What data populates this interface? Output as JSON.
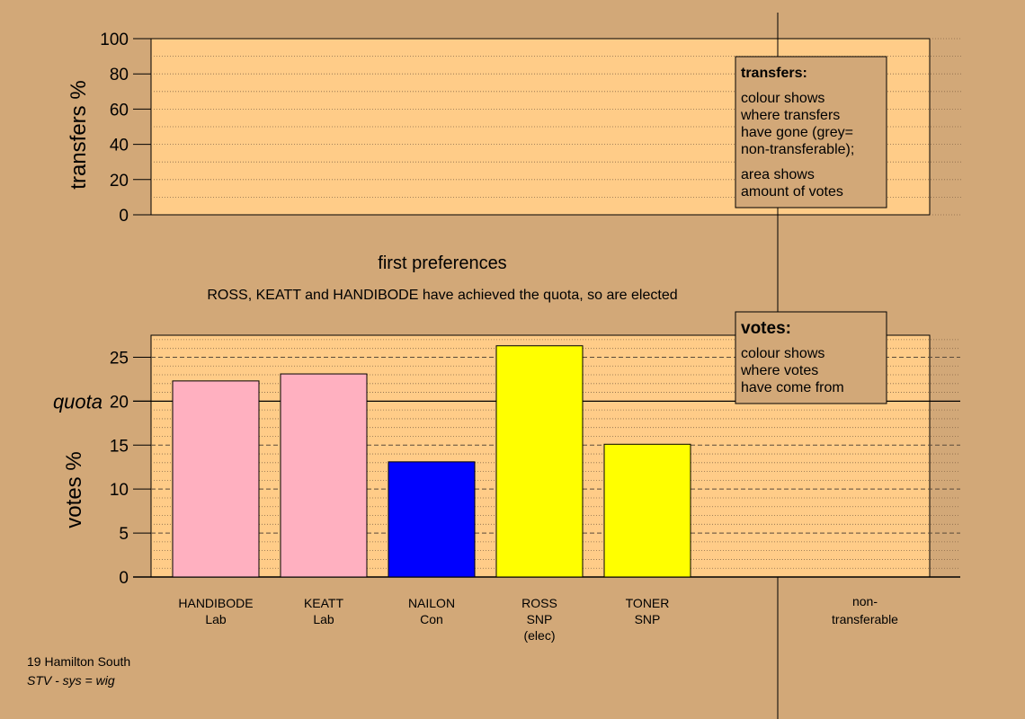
{
  "colors": {
    "background": "#d2a878",
    "panel": "#ffcc88",
    "legend_box": "#d2a878",
    "grid_minor": "#8a6a4a",
    "grid_major": "#5a4a3a",
    "axis": "#000000"
  },
  "top_panel": {
    "ylabel": "transfers %",
    "yticks": [
      "0",
      "20",
      "40",
      "60",
      "80",
      "100"
    ],
    "legend": {
      "title": "transfers:",
      "line1": "colour shows",
      "line2": "where transfers",
      "line3": "have gone (grey=",
      "line4": "non-transferable);",
      "line5": "area shows",
      "line6": "amount of votes"
    }
  },
  "stage_title": "first preferences",
  "stage_note": "ROSS, KEATT and HANDIBODE have achieved the quota, so are elected",
  "bottom_panel": {
    "ylabel": "votes %",
    "quota_label": "quota",
    "legend": {
      "title": "votes:",
      "line1": "colour shows",
      "line2": "where votes",
      "line3": "have come from"
    }
  },
  "chart_data": {
    "type": "bar",
    "title": "first preferences",
    "ylabel": "votes %",
    "ylim": [
      0,
      27.5
    ],
    "yticks": [
      0,
      5,
      10,
      15,
      20,
      25
    ],
    "quota": 20,
    "categories": [
      {
        "lines": [
          "HANDIBODE",
          "Lab"
        ],
        "value": 22.3,
        "color": "#ffb0c0"
      },
      {
        "lines": [
          "KEATT",
          "Lab"
        ],
        "value": 23.1,
        "color": "#ffb0c0"
      },
      {
        "lines": [
          "NAILON",
          "Con"
        ],
        "value": 13.1,
        "color": "#0000ff"
      },
      {
        "lines": [
          "ROSS",
          "SNP",
          "(elec)"
        ],
        "value": 26.3,
        "color": "#ffff00"
      },
      {
        "lines": [
          "TONER",
          "SNP"
        ],
        "value": 15.1,
        "color": "#ffff00"
      }
    ],
    "extra_category": {
      "lines": [
        "non-",
        "transferable"
      ]
    },
    "top_chart": {
      "ylabel": "transfers %",
      "ylim": [
        0,
        100
      ],
      "yticks": [
        0,
        20,
        40,
        60,
        80,
        100
      ]
    }
  },
  "footer": {
    "line1": "19 Hamilton South",
    "line2": "STV - sys = wig"
  }
}
